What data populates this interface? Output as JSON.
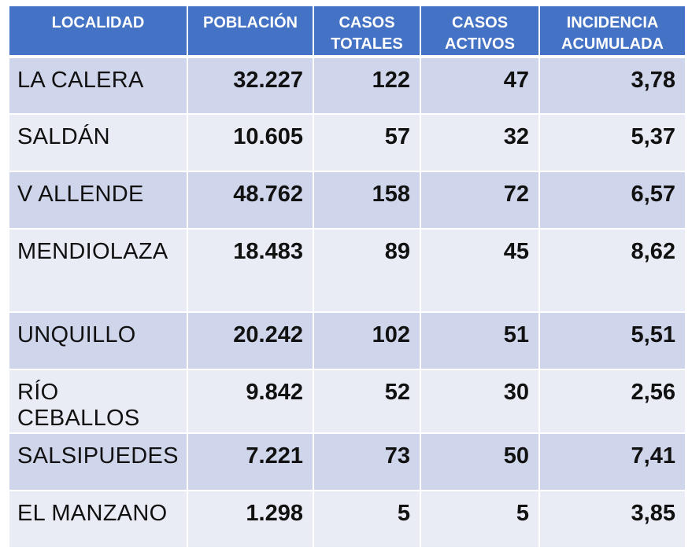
{
  "headers": [
    [
      "LOCALIDAD"
    ],
    [
      "POBLACIÓN"
    ],
    [
      "CASOS",
      "TOTALES"
    ],
    [
      "CASOS",
      "ACTIVOS"
    ],
    [
      "INCIDENCIA",
      "ACUMULADA"
    ]
  ],
  "rows": [
    {
      "localidad": "LA CALERA",
      "poblacion": "32.227",
      "casos_totales": "122",
      "casos_activos": "47",
      "incidencia": "3,78"
    },
    {
      "localidad": "SALDÁN",
      "poblacion": "10.605",
      "casos_totales": "57",
      "casos_activos": "32",
      "incidencia": "5,37"
    },
    {
      "localidad": "V ALLENDE",
      "poblacion": "48.762",
      "casos_totales": "158",
      "casos_activos": "72",
      "incidencia": "6,57"
    },
    {
      "localidad": "MENDIOLAZA",
      "poblacion": "18.483",
      "casos_totales": "89",
      "casos_activos": "45",
      "incidencia": "8,62"
    },
    {
      "localidad": "UNQUILLO",
      "poblacion": "20.242",
      "casos_totales": "102",
      "casos_activos": "51",
      "incidencia": "5,51"
    },
    {
      "localidad": "RÍO CEBALLOS",
      "poblacion": "9.842",
      "casos_totales": "52",
      "casos_activos": "30",
      "incidencia": "2,56"
    },
    {
      "localidad": "SALSIPUEDES",
      "poblacion": "7.221",
      "casos_totales": "73",
      "casos_activos": "50",
      "incidencia": "7,41"
    },
    {
      "localidad": "EL MANZANO",
      "poblacion": "1.298",
      "casos_totales": "5",
      "casos_activos": "5",
      "incidencia": "3,85"
    }
  ],
  "colors": {
    "header_bg": "#4472c4",
    "row_dark": "#cfd5ea",
    "row_light": "#e9ebf5"
  }
}
